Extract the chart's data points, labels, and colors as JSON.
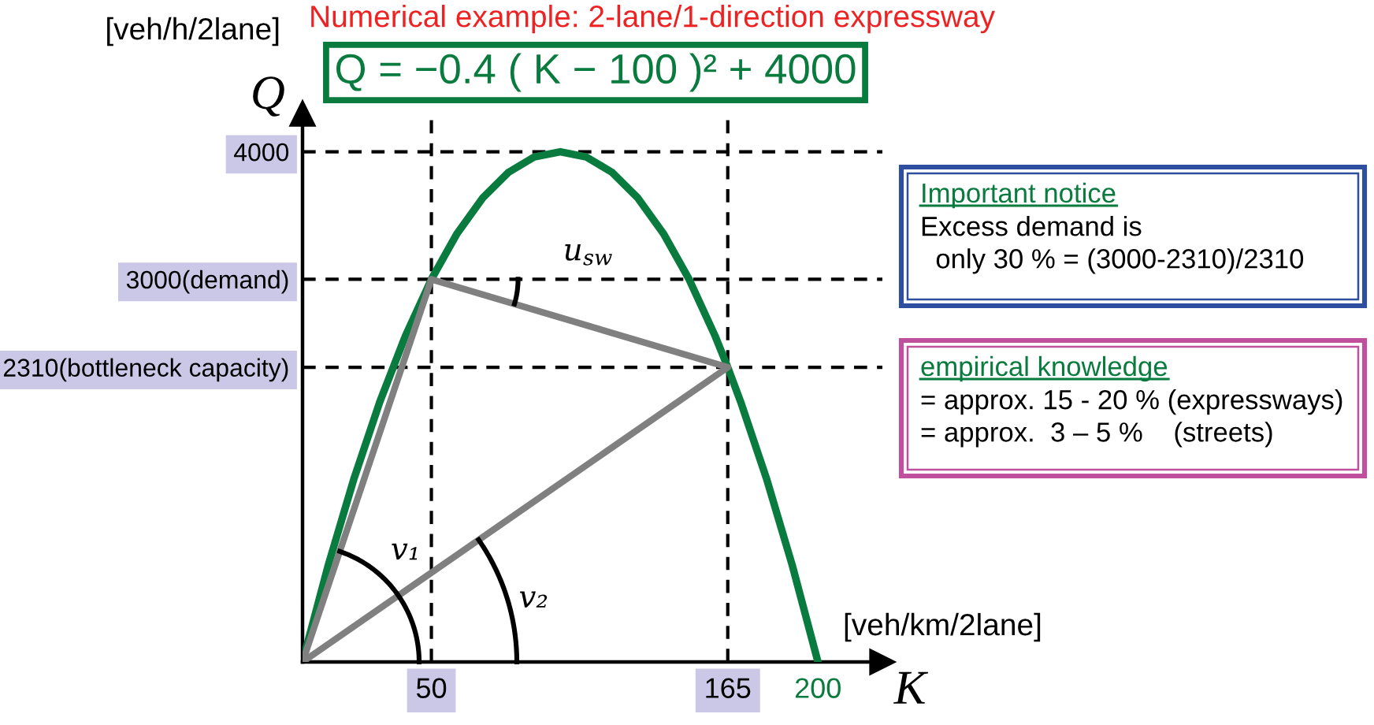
{
  "chart_data": {
    "type": "line",
    "title": "Numerical example: 2-lane/1-direction expressway",
    "xlabel": "K",
    "ylabel": "Q",
    "xlim": [
      0,
      225
    ],
    "ylim": [
      0,
      4300
    ],
    "xticks": [
      50,
      165,
      200
    ],
    "yticks": [
      {
        "value": 2310,
        "label": "2310(bottleneck capacity)"
      },
      {
        "value": 3000,
        "label": "3000(demand)"
      },
      4000
    ],
    "series": [
      {
        "color": "#0a7b3e",
        "x": [
          0,
          10,
          20,
          30,
          40,
          50,
          60,
          70,
          80,
          90,
          100,
          110,
          120,
          130,
          140,
          150,
          160,
          165,
          170,
          180,
          190,
          200
        ],
        "values": [
          0,
          760,
          1440,
          2040,
          2560,
          3000,
          3360,
          3640,
          3840,
          3960,
          4000,
          3960,
          3840,
          3640,
          3360,
          3000,
          2560,
          2310,
          2040,
          1440,
          760,
          0
        ]
      },
      {
        "color": "#808080",
        "x": [
          0,
          50
        ],
        "values": [
          0,
          3000
        ]
      },
      {
        "color": "#808080",
        "x": [
          50,
          165
        ],
        "values": [
          3000,
          2310
        ]
      },
      {
        "color": "#808080",
        "x": [
          0,
          165
        ],
        "values": [
          0,
          2310
        ]
      }
    ],
    "ref_lines": [
      {
        "axis": "y",
        "value": 4000,
        "color": "#000000",
        "line_style": "dashed"
      },
      {
        "axis": "y",
        "value": 3000,
        "color": "#000000",
        "line_style": "dashed"
      },
      {
        "axis": "y",
        "value": 2310,
        "color": "#000000",
        "line_style": "dashed"
      },
      {
        "axis": "x",
        "value": 50,
        "color": "#000000",
        "line_style": "dashed"
      },
      {
        "axis": "x",
        "value": 165,
        "color": "#000000",
        "line_style": "dashed"
      }
    ],
    "annotations": [
      "Q = −0.4 ( K − 100 )² + 4000",
      "[veh/h/2lane]",
      "[veh/km/2lane]",
      "Important notice",
      "Excess demand is\n  only 30 % = (3000-2310)/2310",
      "empirical knowledge",
      "= approx. 15 - 20 % (expressways)\n= approx.  3 – 5 %    (streets)",
      "v₁",
      "v₂",
      "u$_{sw}$"
    ]
  }
}
